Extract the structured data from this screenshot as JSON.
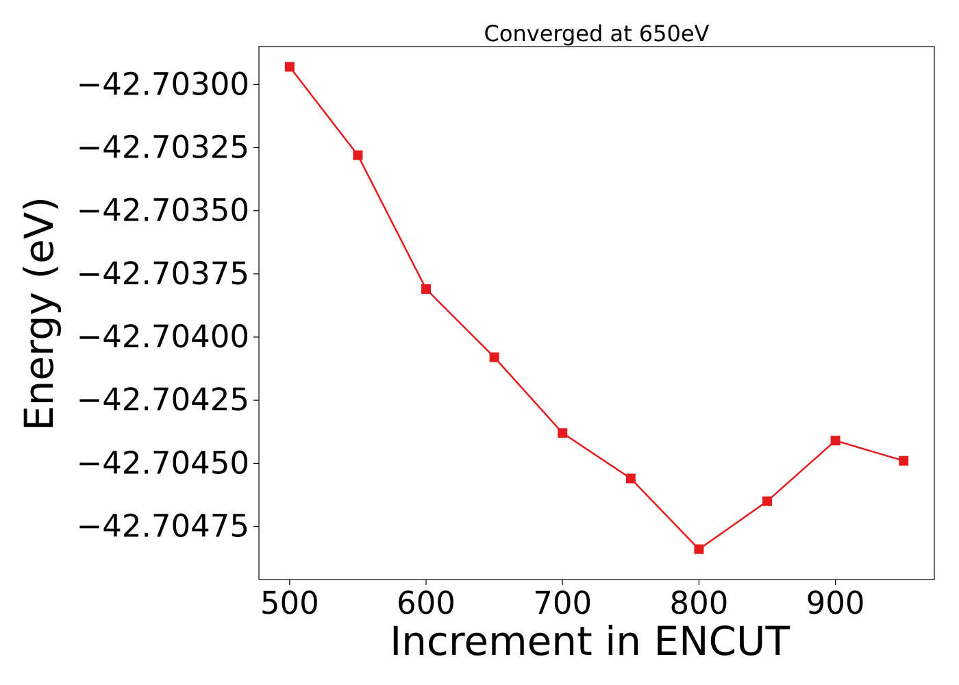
{
  "chart_data": {
    "type": "line",
    "title": "Converged at 650eV",
    "xlabel": "Increment in ENCUT",
    "ylabel": "Energy (eV)",
    "x": [
      500,
      550,
      600,
      650,
      700,
      750,
      800,
      850,
      900,
      950
    ],
    "series": [
      {
        "values": [
          -42.70293,
          -42.70328,
          -42.70381,
          -42.70408,
          -42.70438,
          -42.70456,
          -42.70484,
          -42.70465,
          -42.70441,
          -42.70449
        ],
        "color": "#e41a1c",
        "marker": "square"
      }
    ],
    "xlim": [
      477.5,
      972.5
    ],
    "ylim": [
      -42.70496,
      -42.70285
    ],
    "xticks": [
      500,
      600,
      700,
      800,
      900
    ],
    "xtick_labels": [
      "500",
      "600",
      "700",
      "800",
      "900"
    ],
    "yticks": [
      -42.703,
      -42.70325,
      -42.7035,
      -42.70375,
      -42.704,
      -42.70425,
      -42.7045,
      -42.70475
    ],
    "ytick_labels": [
      "−42.70300",
      "−42.70325",
      "−42.70350",
      "−42.70375",
      "−42.70400",
      "−42.70425",
      "−42.70450",
      "−42.70475"
    ],
    "grid": false,
    "legend": false
  }
}
